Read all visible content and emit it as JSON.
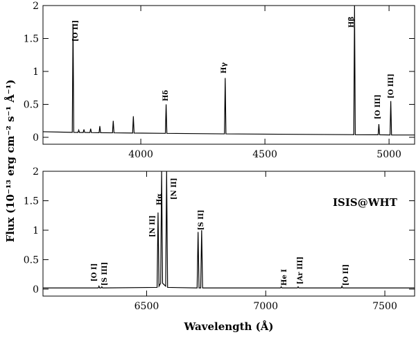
{
  "chart_data": [
    {
      "type": "line",
      "color": "#000000",
      "x": [
        3606,
        3724,
        3727,
        3730,
        3747,
        3750,
        3753,
        3768,
        3771,
        3774,
        3795,
        3798,
        3801,
        3832,
        3835,
        3838,
        3886,
        3889,
        3892,
        3967,
        3970,
        3973,
        4099,
        4102,
        4105,
        4337,
        4340,
        4343,
        4858,
        4861,
        4864,
        4956,
        4959,
        4962,
        5004,
        5007,
        5010,
        5103
      ],
      "values": [
        0.085,
        0.075,
        1.72,
        0.075,
        0.074,
        0.11,
        0.074,
        0.073,
        0.12,
        0.073,
        0.072,
        0.13,
        0.072,
        0.07,
        0.17,
        0.07,
        0.068,
        0.25,
        0.068,
        0.065,
        0.32,
        0.065,
        0.06,
        0.5,
        0.06,
        0.052,
        0.9,
        0.052,
        0.04,
        2,
        0.04,
        0.038,
        0.2,
        0.038,
        0.036,
        0.55,
        0.036,
        0.035
      ],
      "xlim": [
        3606,
        5103
      ],
      "xticks": [
        4000,
        4500,
        5000
      ],
      "ylim": [
        -0.105,
        2
      ],
      "yticks": [
        0,
        0.5,
        1,
        1.5,
        2
      ],
      "annotations": [
        "[O II]",
        "Hδ",
        "Hγ",
        "Hβ",
        "[O III]",
        "[O III]"
      ]
    },
    {
      "type": "line",
      "color": "#000000",
      "x": [
        6065,
        6297,
        6300,
        6303,
        6309,
        6312,
        6315,
        6544,
        6548,
        6552,
        6559,
        6563,
        6567,
        6580,
        6584,
        6588,
        6712,
        6716,
        6720,
        6727,
        6731,
        6735,
        7062,
        7065,
        7068,
        7133,
        7136,
        7139,
        7317,
        7320,
        7323,
        7625
      ],
      "values": [
        0.02,
        0.02,
        0.05,
        0.02,
        0.02,
        0.04,
        0.02,
        0.03,
        1.3,
        0.05,
        0.1,
        2,
        0.1,
        0.05,
        2,
        0.03,
        0.02,
        0.97,
        0.02,
        0.02,
        1.0,
        0.02,
        0.02,
        0.04,
        0.02,
        0.02,
        0.04,
        0.02,
        0.02,
        0.05,
        0.02,
        0.02
      ],
      "xlim": [
        6065,
        7625
      ],
      "xticks": [
        6500,
        7000,
        7500
      ],
      "ylim": [
        -0.118,
        2
      ],
      "yticks": [
        0,
        0.5,
        1,
        1.5,
        2
      ],
      "annotations": [
        "[O I]",
        "[S III]",
        "[N II]",
        "Hα",
        "[N II]",
        "[S II]",
        "He I",
        "[Ar III]",
        "[O II]",
        "ISIS@WHT"
      ],
      "xlabel": "Wavelength (Å)",
      "ylabel": "Flux (10⁻¹³ erg cm⁻² s⁻¹ Å⁻¹)"
    }
  ]
}
